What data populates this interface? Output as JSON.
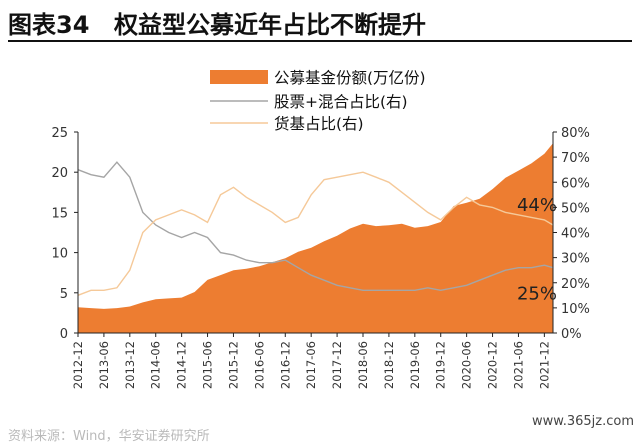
{
  "header": {
    "figure_label": "图表34",
    "title": "权益型公募近年占比不断提升"
  },
  "footer": {
    "source_text": "资料来源：Wind，华安证券研究所",
    "watermark": "www.365jz.com"
  },
  "colors": {
    "fund_size": "#ED7D31",
    "equity_share": "#A5A5A5",
    "money_share": "#F5C999",
    "axis": "#222222"
  },
  "chart_data": {
    "type": "area",
    "title": "",
    "xlabel": "",
    "ylabel": "",
    "ylabel_right": "",
    "ylim": [
      0,
      25
    ],
    "yticks": [
      "0",
      "5",
      "10",
      "15",
      "20",
      "25"
    ],
    "ylim_right": [
      0,
      80
    ],
    "yticks_right": [
      "0%",
      "10%",
      "20%",
      "30%",
      "40%",
      "50%",
      "60%",
      "70%",
      "80%"
    ],
    "x_ticks": [
      "2012-12",
      "2013-06",
      "2013-12",
      "2014-06",
      "2014-12",
      "2015-06",
      "2015-12",
      "2016-06",
      "2016-12",
      "2017-06",
      "2017-12",
      "2018-06",
      "2018-12",
      "2019-06",
      "2019-12",
      "2020-06",
      "2020-12",
      "2021-06",
      "2021-12"
    ],
    "x_months": [
      "2012-12",
      "2013-03",
      "2013-06",
      "2013-09",
      "2013-12",
      "2014-03",
      "2014-06",
      "2014-09",
      "2014-12",
      "2015-03",
      "2015-06",
      "2015-09",
      "2015-12",
      "2016-03",
      "2016-06",
      "2016-09",
      "2016-12",
      "2017-03",
      "2017-06",
      "2017-09",
      "2017-12",
      "2018-03",
      "2018-06",
      "2018-09",
      "2018-12",
      "2019-03",
      "2019-06",
      "2019-09",
      "2019-12",
      "2020-03",
      "2020-06",
      "2020-09",
      "2020-12",
      "2021-03",
      "2021-06",
      "2021-09",
      "2021-12",
      "2022-02"
    ],
    "legend": {
      "placement": "top-center"
    },
    "grid": false,
    "series": [
      {
        "name": "公募基金份额(万亿份)",
        "type": "area",
        "axis": "left",
        "values": [
          3.2,
          3.1,
          3.0,
          3.1,
          3.3,
          3.8,
          4.2,
          4.3,
          4.4,
          5.1,
          6.6,
          7.2,
          7.8,
          8.0,
          8.3,
          8.8,
          9.3,
          10.1,
          10.6,
          11.4,
          12.1,
          13.0,
          13.6,
          13.3,
          13.4,
          13.6,
          13.1,
          13.3,
          13.8,
          15.8,
          16.2,
          16.7,
          17.9,
          19.3,
          20.2,
          21.1,
          22.3,
          23.6
        ]
      },
      {
        "name": "股票+混合占比(右)",
        "type": "line",
        "axis": "right",
        "values": [
          65,
          63,
          62,
          68,
          62,
          48,
          43,
          40,
          38,
          40,
          38,
          32,
          31,
          29,
          28,
          28,
          29,
          26,
          23,
          21,
          19,
          18,
          17,
          17,
          17,
          17,
          17,
          18,
          17,
          18,
          19,
          21,
          23,
          25,
          26,
          26,
          27,
          26
        ]
      },
      {
        "name": "货基占比(右)",
        "type": "line",
        "axis": "right",
        "values": [
          15,
          17,
          17,
          18,
          25,
          40,
          45,
          47,
          49,
          47,
          44,
          55,
          58,
          54,
          51,
          48,
          44,
          46,
          55,
          61,
          62,
          63,
          64,
          62,
          60,
          56,
          52,
          48,
          45,
          50,
          54,
          51,
          50,
          48,
          47,
          46,
          45,
          43
        ]
      }
    ],
    "annotations": [
      {
        "text": "44%",
        "series": 2
      },
      {
        "text": "25%",
        "series": 1
      }
    ]
  }
}
